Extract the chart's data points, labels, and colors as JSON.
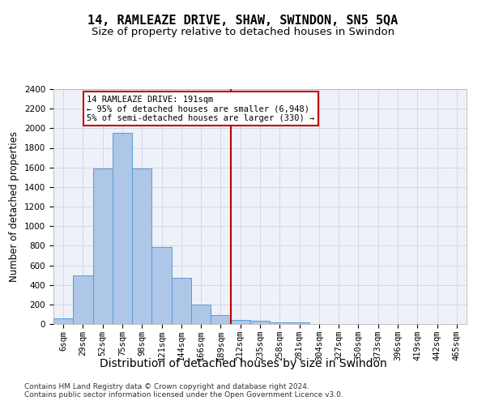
{
  "title": "14, RAMLEAZE DRIVE, SHAW, SWINDON, SN5 5QA",
  "subtitle": "Size of property relative to detached houses in Swindon",
  "xlabel": "Distribution of detached houses by size in Swindon",
  "ylabel": "Number of detached properties",
  "footer_line1": "Contains HM Land Registry data © Crown copyright and database right 2024.",
  "footer_line2": "Contains public sector information licensed under the Open Government Licence v3.0.",
  "bar_labels": [
    "6sqm",
    "29sqm",
    "52sqm",
    "75sqm",
    "98sqm",
    "121sqm",
    "144sqm",
    "166sqm",
    "189sqm",
    "212sqm",
    "235sqm",
    "258sqm",
    "281sqm",
    "304sqm",
    "327sqm",
    "350sqm",
    "373sqm",
    "396sqm",
    "419sqm",
    "442sqm",
    "465sqm"
  ],
  "bar_heights": [
    60,
    500,
    1590,
    1950,
    1590,
    790,
    470,
    200,
    95,
    40,
    30,
    20,
    15,
    0,
    0,
    0,
    0,
    0,
    0,
    0,
    0
  ],
  "bar_color": "#aec6e8",
  "bar_edge_color": "#5b9bd5",
  "vline_x": 8.5,
  "vline_color": "#c00000",
  "annotation_title": "14 RAMLEAZE DRIVE: 191sqm",
  "annotation_line1": "← 95% of detached houses are smaller (6,948)",
  "annotation_line2": "5% of semi-detached houses are larger (330) →",
  "annotation_box_color": "#c00000",
  "ylim": [
    0,
    2400
  ],
  "yticks": [
    0,
    200,
    400,
    600,
    800,
    1000,
    1200,
    1400,
    1600,
    1800,
    2000,
    2200,
    2400
  ],
  "grid_color": "#d0d8e8",
  "bg_color": "#eef2f8",
  "title_fontsize": 11,
  "subtitle_fontsize": 9.5,
  "xlabel_fontsize": 10,
  "ylabel_fontsize": 8.5,
  "tick_fontsize": 7.5,
  "annotation_fontsize": 7.5,
  "footer_fontsize": 6.5
}
